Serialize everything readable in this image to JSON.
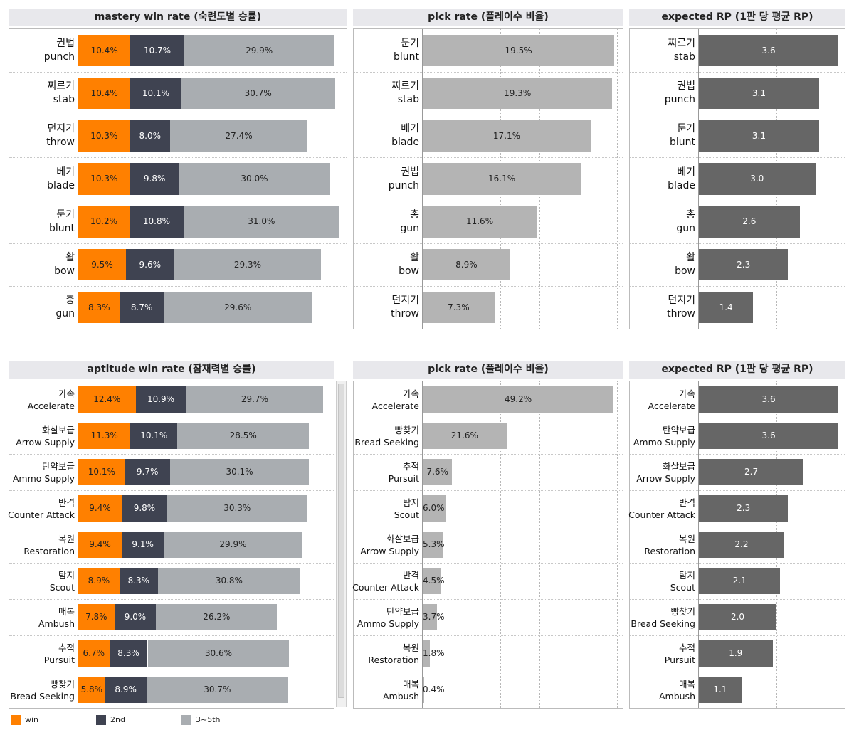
{
  "colors": {
    "win": "#ff8000",
    "second": "#3f4351",
    "rest": "#a9adb1",
    "pick": "#b4b4b4",
    "rp": "#666666"
  },
  "legend": [
    {
      "label": "win",
      "color": "#ff8000"
    },
    {
      "label": "2nd",
      "color": "#3f4351"
    },
    {
      "label": "3~5th",
      "color": "#a9adb1"
    }
  ],
  "chart_data": [
    {
      "id": "mastery-win",
      "type": "bar",
      "stacked": true,
      "title": "mastery win rate (숙련도별 승률)",
      "categories": [
        [
          "권법",
          "punch"
        ],
        [
          "찌르기",
          "stab"
        ],
        [
          "던지기",
          "throw"
        ],
        [
          "베기",
          "blade"
        ],
        [
          "둔기",
          "blunt"
        ],
        [
          "활",
          "bow"
        ],
        [
          "총",
          "gun"
        ]
      ],
      "series": [
        {
          "name": "win",
          "values": [
            10.4,
            10.4,
            10.3,
            10.3,
            10.2,
            9.5,
            8.3
          ]
        },
        {
          "name": "2nd",
          "values": [
            10.7,
            10.1,
            8.0,
            9.8,
            10.8,
            9.6,
            8.7
          ]
        },
        {
          "name": "3~5th",
          "values": [
            29.9,
            30.7,
            27.4,
            30.0,
            31.0,
            29.3,
            29.6
          ]
        }
      ],
      "unit": "%"
    },
    {
      "id": "mastery-pick",
      "type": "bar",
      "title": "pick rate (플레이수 비율)",
      "categories": [
        [
          "둔기",
          "blunt"
        ],
        [
          "찌르기",
          "stab"
        ],
        [
          "베기",
          "blade"
        ],
        [
          "권법",
          "punch"
        ],
        [
          "총",
          "gun"
        ],
        [
          "활",
          "bow"
        ],
        [
          "던지기",
          "throw"
        ]
      ],
      "values": [
        19.5,
        19.3,
        17.1,
        16.1,
        11.6,
        8.9,
        7.3
      ],
      "unit": "%"
    },
    {
      "id": "mastery-rp",
      "type": "bar",
      "title": "expected RP (1판 당 평균 RP)",
      "categories": [
        [
          "찌르기",
          "stab"
        ],
        [
          "권법",
          "punch"
        ],
        [
          "둔기",
          "blunt"
        ],
        [
          "베기",
          "blade"
        ],
        [
          "총",
          "gun"
        ],
        [
          "활",
          "bow"
        ],
        [
          "던지기",
          "throw"
        ]
      ],
      "values": [
        3.6,
        3.1,
        3.1,
        3.0,
        2.6,
        2.3,
        1.4
      ]
    },
    {
      "id": "aptitude-win",
      "type": "bar",
      "stacked": true,
      "title": "aptitude win rate (잠재력별 승률)",
      "categories": [
        [
          "가속",
          "Accelerate"
        ],
        [
          "화살보급",
          "Arrow Supply"
        ],
        [
          "탄약보급",
          "Ammo Supply"
        ],
        [
          "반격",
          "Counter Attack"
        ],
        [
          "복원",
          "Restoration"
        ],
        [
          "탐지",
          "Scout"
        ],
        [
          "매복",
          "Ambush"
        ],
        [
          "추적",
          "Pursuit"
        ],
        [
          "빵찾기",
          "Bread Seeking"
        ]
      ],
      "series": [
        {
          "name": "win",
          "values": [
            12.4,
            11.3,
            10.1,
            9.4,
            9.4,
            8.9,
            7.8,
            6.7,
            5.8
          ]
        },
        {
          "name": "2nd",
          "values": [
            10.9,
            10.1,
            9.7,
            9.8,
            9.1,
            8.3,
            9.0,
            8.3,
            8.9
          ]
        },
        {
          "name": "3~5th",
          "values": [
            29.7,
            28.5,
            30.1,
            30.3,
            29.9,
            30.8,
            26.2,
            30.6,
            30.7
          ]
        }
      ],
      "unit": "%"
    },
    {
      "id": "aptitude-pick",
      "type": "bar",
      "title": "pick rate (플레이수 비율)",
      "categories": [
        [
          "가속",
          "Accelerate"
        ],
        [
          "빵찾기",
          "Bread Seeking"
        ],
        [
          "추적",
          "Pursuit"
        ],
        [
          "탐지",
          "Scout"
        ],
        [
          "화살보급",
          "Arrow Supply"
        ],
        [
          "반격",
          "Counter Attack"
        ],
        [
          "탄약보급",
          "Ammo Supply"
        ],
        [
          "복원",
          "Restoration"
        ],
        [
          "매복",
          "Ambush"
        ]
      ],
      "values": [
        49.2,
        21.6,
        7.6,
        6.0,
        5.3,
        4.5,
        3.7,
        1.8,
        0.4
      ],
      "unit": "%"
    },
    {
      "id": "aptitude-rp",
      "type": "bar",
      "title": "expected RP (1판 당 평균 RP)",
      "categories": [
        [
          "가속",
          "Accelerate"
        ],
        [
          "탄약보급",
          "Ammo Supply"
        ],
        [
          "화살보급",
          "Arrow Supply"
        ],
        [
          "반격",
          "Counter Attack"
        ],
        [
          "복원",
          "Restoration"
        ],
        [
          "탐지",
          "Scout"
        ],
        [
          "빵찾기",
          "Bread Seeking"
        ],
        [
          "추적",
          "Pursuit"
        ],
        [
          "매복",
          "Ambush"
        ]
      ],
      "values": [
        3.6,
        3.6,
        2.7,
        2.3,
        2.2,
        2.1,
        2.0,
        1.9,
        1.1
      ]
    }
  ]
}
